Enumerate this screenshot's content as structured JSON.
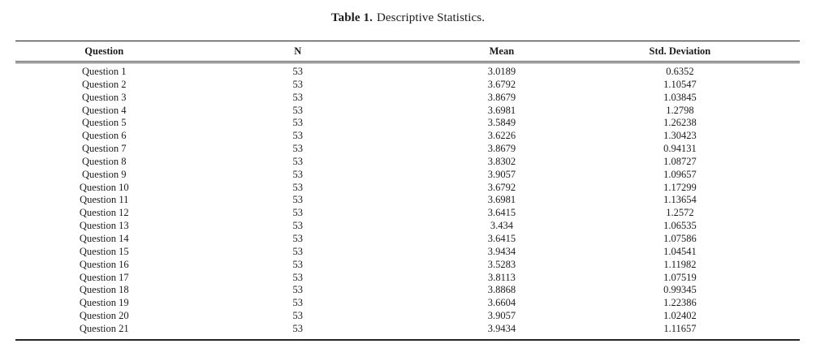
{
  "page": {
    "background_color": "#ffffff",
    "text_color": "#1c1c1c",
    "rule_color": "#1a1a1a"
  },
  "table": {
    "label": "Table 1.",
    "caption": "Descriptive Statistics.",
    "columns": [
      "Question",
      "N",
      "Mean",
      "Std. Deviation"
    ],
    "rows": [
      {
        "question": "Question 1",
        "n": "53",
        "mean": "3.0189",
        "std": "0.6352"
      },
      {
        "question": "Question 2",
        "n": "53",
        "mean": "3.6792",
        "std": "1.10547"
      },
      {
        "question": "Question 3",
        "n": "53",
        "mean": "3.8679",
        "std": "1.03845"
      },
      {
        "question": "Question 4",
        "n": "53",
        "mean": "3.6981",
        "std": "1.2798"
      },
      {
        "question": "Question 5",
        "n": "53",
        "mean": "3.5849",
        "std": "1.26238"
      },
      {
        "question": "Question 6",
        "n": "53",
        "mean": "3.6226",
        "std": "1.30423"
      },
      {
        "question": "Question 7",
        "n": "53",
        "mean": "3.8679",
        "std": "0.94131"
      },
      {
        "question": "Question 8",
        "n": "53",
        "mean": "3.8302",
        "std": "1.08727"
      },
      {
        "question": "Question 9",
        "n": "53",
        "mean": "3.9057",
        "std": "1.09657"
      },
      {
        "question": "Question 10",
        "n": "53",
        "mean": "3.6792",
        "std": "1.17299"
      },
      {
        "question": "Question 11",
        "n": "53",
        "mean": "3.6981",
        "std": "1.13654"
      },
      {
        "question": "Question 12",
        "n": "53",
        "mean": "3.6415",
        "std": "1.2572"
      },
      {
        "question": "Question 13",
        "n": "53",
        "mean": "3.434",
        "std": "1.06535"
      },
      {
        "question": "Question 14",
        "n": "53",
        "mean": "3.6415",
        "std": "1.07586"
      },
      {
        "question": "Question 15",
        "n": "53",
        "mean": "3.9434",
        "std": "1.04541"
      },
      {
        "question": "Question 16",
        "n": "53",
        "mean": "3.5283",
        "std": "1.11982"
      },
      {
        "question": "Question 17",
        "n": "53",
        "mean": "3.8113",
        "std": "1.07519"
      },
      {
        "question": "Question 18",
        "n": "53",
        "mean": "3.8868",
        "std": "0.99345"
      },
      {
        "question": "Question 19",
        "n": "53",
        "mean": "3.6604",
        "std": "1.22386"
      },
      {
        "question": "Question 20",
        "n": "53",
        "mean": "3.9057",
        "std": "1.02402"
      },
      {
        "question": "Question 21",
        "n": "53",
        "mean": "3.9434",
        "std": "1.11657"
      }
    ]
  }
}
